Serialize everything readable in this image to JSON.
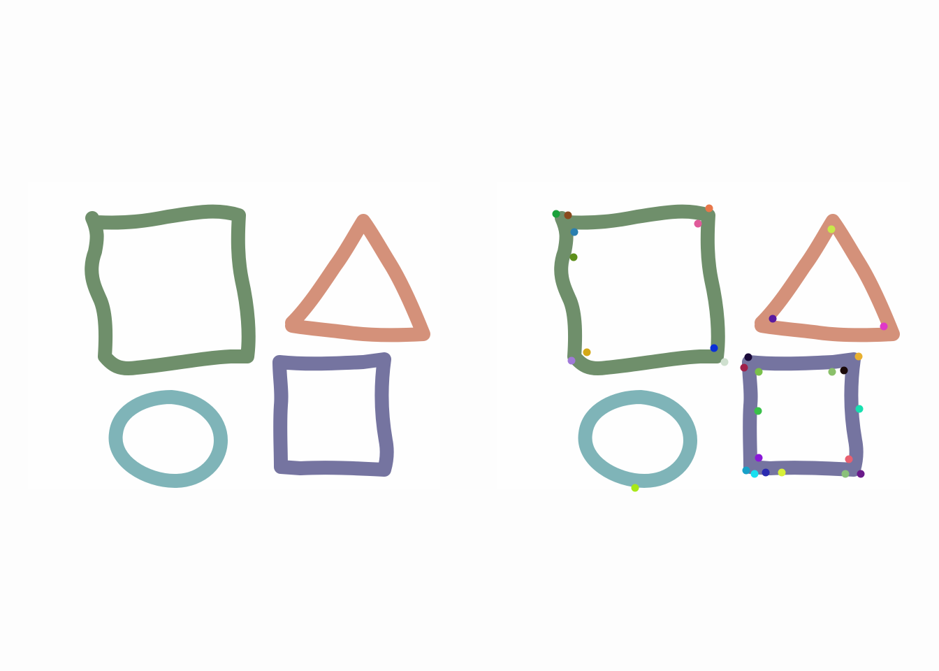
{
  "panels": [
    {
      "id": "original-sketch",
      "shapes": [
        {
          "kind": "square",
          "color": "#6f8f6b"
        },
        {
          "kind": "triangle",
          "color": "#d4917a"
        },
        {
          "kind": "circle",
          "color": "#7fb4b8"
        },
        {
          "kind": "square",
          "color": "#7574a0"
        }
      ]
    },
    {
      "id": "annotated-sketch",
      "shapes": [
        {
          "kind": "square",
          "color": "#6f8f6b"
        },
        {
          "kind": "triangle",
          "color": "#d4917a"
        },
        {
          "kind": "circle",
          "color": "#7fb4b8"
        },
        {
          "kind": "square",
          "color": "#7574a0"
        }
      ],
      "marker_colors": [
        "#1aa13a",
        "#8a4a1e",
        "#e8774a",
        "#e05a9a",
        "#2a7fb0",
        "#5c8f1a",
        "#d4a817",
        "#0a2fd8",
        "#a07ad8",
        "#cfe0cf",
        "#c8e84a",
        "#5a1aa0",
        "#e038c8",
        "#1a0a3a",
        "#e8b030",
        "#a0204a",
        "#7ac04a",
        "#8ac06a",
        "#1a0a0a",
        "#18e0b0",
        "#3ac04a",
        "#8a18d8",
        "#e86070",
        "#18a0c8",
        "#18e0f0",
        "#2a2ab0",
        "#d8f038",
        "#8ac07a",
        "#6a1a8a",
        "#a8e818"
      ]
    }
  ]
}
